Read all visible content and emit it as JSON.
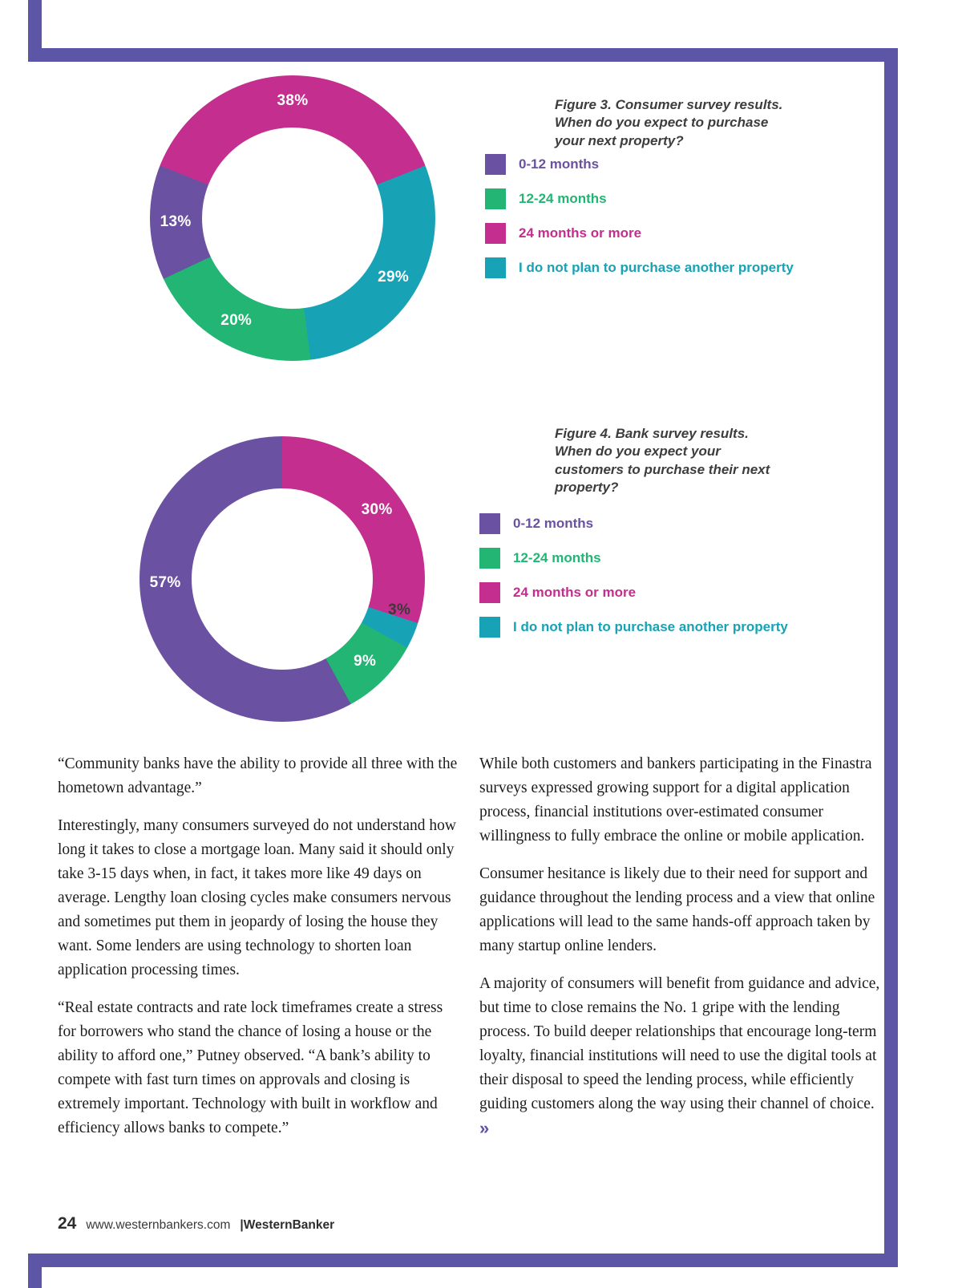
{
  "page": {
    "background": "#ffffff",
    "frame_color": "#5d55a5"
  },
  "figures": [
    {
      "caption": "Figure 3. Consumer survey results.\nWhen do you expect to purchase\nyour next property?",
      "legend": [
        {
          "label": "0-12 months",
          "color": "#6b51a1"
        },
        {
          "label": "12-24 months",
          "color": "#22b573"
        },
        {
          "label": "24 months or more",
          "color": "#c42e8e"
        },
        {
          "label": "I do not plan to purchase another property",
          "color": "#18a2b5"
        }
      ]
    },
    {
      "caption": "Figure 4. Bank survey results.\nWhen do you expect your\ncustomers to purchase their next\nproperty?",
      "legend": [
        {
          "label": "0-12 months",
          "color": "#6b51a1"
        },
        {
          "label": "12-24 months",
          "color": "#22b573"
        },
        {
          "label": "24 months or more",
          "color": "#c42e8e"
        },
        {
          "label": "I do not plan to purchase another property",
          "color": "#18a2b5"
        }
      ]
    }
  ],
  "chart_data": [
    {
      "type": "pie",
      "subtype": "donut",
      "title": "Figure 3. Consumer survey results. When do you expect to purchase your next property?",
      "categories": [
        "0-12 months",
        "12-24 months",
        "24 months or more",
        "I do not plan to purchase another property"
      ],
      "values": [
        13,
        20,
        38,
        29
      ],
      "start_angle": -68.4,
      "segments": [
        {
          "label": "24 months or more",
          "value": 38,
          "color": "#c42e8e"
        },
        {
          "label": "I do not plan to purchase another property",
          "value": 29,
          "color": "#18a2b5"
        },
        {
          "label": "12-24 months",
          "value": 20,
          "color": "#22b573"
        },
        {
          "label": "0-12 months",
          "value": 13,
          "color": "#6b51a1"
        }
      ]
    },
    {
      "type": "pie",
      "subtype": "donut",
      "title": "Figure 4. Bank survey results. When do you expect your customers to purchase their next property?",
      "categories": [
        "0-12 months",
        "12-24 months",
        "24 months or more",
        "I do not plan to purchase another property"
      ],
      "values": [
        57,
        9,
        30,
        3
      ],
      "start_angle": 0,
      "segments": [
        {
          "label": "24 months or more",
          "value": 30,
          "color": "#c42e8e"
        },
        {
          "label": "I do not plan to purchase another property",
          "value": 3,
          "color": "#18a2b5",
          "label_color": "#3a3a3a",
          "label_angle": 105,
          "label_r": 0.85
        },
        {
          "label": "12-24 months",
          "value": 9,
          "color": "#22b573"
        },
        {
          "label": "0-12 months",
          "value": 57,
          "color": "#6b51a1",
          "label_angle": 268
        }
      ]
    }
  ],
  "article": {
    "left": [
      "“Community banks have the ability to provide all three with the hometown advantage.”",
      "Interestingly, many consumers surveyed do not understand how long it takes to close a mortgage loan. Many said it should only take 3-15 days when, in fact, it takes more like 49 days on average. Lengthy loan closing cycles make consumers nervous and sometimes put them in jeopardy of losing the house they want. Some lenders are using technology to shorten loan application processing times.",
      "“Real estate contracts and rate lock timeframes create a stress for borrowers who stand the chance of losing a house or the ability to afford one,” Putney observed. “A bank’s ability to compete with fast turn times on approvals and closing is extremely important. Technology with built in workflow and efficiency allows banks to compete.”"
    ],
    "right": [
      "While both customers and bankers participating in the Finastra surveys expressed growing support for a digital application process, financial institutions over-estimated consumer willingness to fully embrace the online or mobile application.",
      "Consumer hesitance is likely due to their need for support and guidance throughout the lending process and a view that online applications will lead to the same hands-off approach taken by many startup online lenders.",
      "A majority of consumers will benefit from guidance and advice, but time to close remains the No. 1 gripe with the lending process. To build deeper relationships that encourage long-term loyalty, financial institutions will need to use the digital tools at their disposal to speed the lending process, while efficiently guiding customers along the way using their channel of choice. "
    ],
    "continue_icon": "»"
  },
  "footer": {
    "page_number": "24",
    "website": "www.westernbankers.com",
    "separator_and_brand": "|WesternBanker"
  }
}
